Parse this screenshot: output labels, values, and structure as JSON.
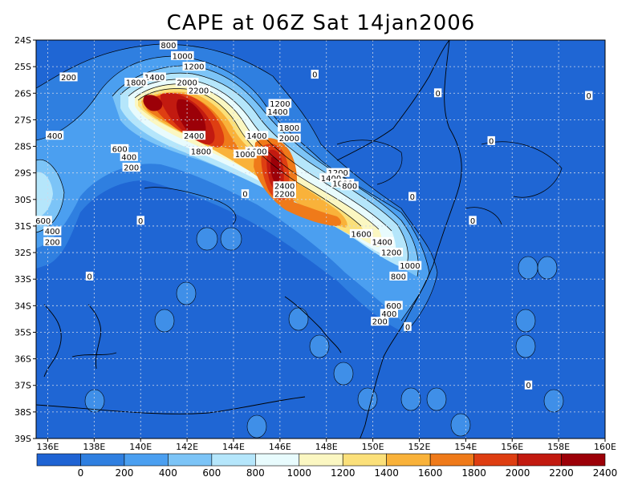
{
  "title": "CAPE at 06Z Sat 14jan2006",
  "colors": {
    "base": "#1f6fd6",
    "land_line": "#000000"
  },
  "chart_data": {
    "type": "heatmap",
    "title": "CAPE at 06Z Sat 14jan2006",
    "x_axis": {
      "range": [
        135.5,
        160
      ],
      "ticks": [
        "136E",
        "138E",
        "140E",
        "142E",
        "144E",
        "146E",
        "148E",
        "150E",
        "152E",
        "154E",
        "156E",
        "158E",
        "160E"
      ]
    },
    "y_axis": {
      "range": [
        -39,
        -24
      ],
      "ticks": [
        "24S",
        "25S",
        "26S",
        "27S",
        "28S",
        "29S",
        "30S",
        "31S",
        "32S",
        "33S",
        "34S",
        "35S",
        "36S",
        "37S",
        "38S",
        "39S"
      ]
    },
    "grid": true,
    "colorbar": {
      "levels": [
        "0",
        "200",
        "400",
        "600",
        "800",
        "1000",
        "1200",
        "1400",
        "1600",
        "1800",
        "2000",
        "2200",
        "2400"
      ],
      "colors": [
        "#1f63d3",
        "#2f7fe0",
        "#4b9ff0",
        "#7cc4f7",
        "#b5e6fb",
        "#e8fbfd",
        "#fbf7c2",
        "#fbe07a",
        "#f9b23a",
        "#ef7a1a",
        "#de3e12",
        "#c21a10",
        "#9c0008"
      ]
    },
    "contour_labels": [
      {
        "text": "800",
        "lon": 141.2,
        "lat": -24.2
      },
      {
        "text": "1000",
        "lon": 141.8,
        "lat": -24.6
      },
      {
        "text": "1200",
        "lon": 142.3,
        "lat": -25.0
      },
      {
        "text": "200",
        "lon": 136.9,
        "lat": -25.4
      },
      {
        "text": "1400",
        "lon": 140.6,
        "lat": -25.4
      },
      {
        "text": "1800",
        "lon": 139.8,
        "lat": -25.6
      },
      {
        "text": "2000",
        "lon": 142.0,
        "lat": -25.6
      },
      {
        "text": "2200",
        "lon": 142.5,
        "lat": -25.9
      },
      {
        "text": "0",
        "lon": 147.5,
        "lat": -25.3
      },
      {
        "text": "0",
        "lon": 152.8,
        "lat": -26.0
      },
      {
        "text": "0",
        "lon": 159.3,
        "lat": -26.1
      },
      {
        "text": "1200",
        "lon": 146.0,
        "lat": -26.4
      },
      {
        "text": "1400",
        "lon": 145.9,
        "lat": -26.7
      },
      {
        "text": "400",
        "lon": 136.3,
        "lat": -27.6
      },
      {
        "text": "1800",
        "lon": 146.4,
        "lat": -27.3
      },
      {
        "text": "2400",
        "lon": 142.3,
        "lat": -27.6
      },
      {
        "text": "1400",
        "lon": 145.0,
        "lat": -27.6
      },
      {
        "text": "2000",
        "lon": 146.4,
        "lat": -27.7
      },
      {
        "text": "0",
        "lon": 155.1,
        "lat": -27.8
      },
      {
        "text": "600",
        "lon": 139.1,
        "lat": -28.1
      },
      {
        "text": "1800",
        "lon": 142.6,
        "lat": -28.2
      },
      {
        "text": "1600",
        "lon": 145.0,
        "lat": -28.2
      },
      {
        "text": "1000",
        "lon": 144.5,
        "lat": -28.3
      },
      {
        "text": "400",
        "lon": 139.5,
        "lat": -28.4
      },
      {
        "text": "200",
        "lon": 139.6,
        "lat": -28.8
      },
      {
        "text": "1200",
        "lon": 148.5,
        "lat": -29.0
      },
      {
        "text": "1400",
        "lon": 148.2,
        "lat": -29.2
      },
      {
        "text": "1000",
        "lon": 148.7,
        "lat": -29.4
      },
      {
        "text": "800",
        "lon": 149.0,
        "lat": -29.5
      },
      {
        "text": "2400",
        "lon": 146.2,
        "lat": -29.5
      },
      {
        "text": "2200",
        "lon": 146.2,
        "lat": -29.8
      },
      {
        "text": "0",
        "lon": 144.5,
        "lat": -29.8
      },
      {
        "text": "0",
        "lon": 151.7,
        "lat": -29.9
      },
      {
        "text": "0",
        "lon": 140.0,
        "lat": -30.8
      },
      {
        "text": "0",
        "lon": 154.3,
        "lat": -30.8
      },
      {
        "text": "600",
        "lon": 135.8,
        "lat": -30.8
      },
      {
        "text": "400",
        "lon": 136.2,
        "lat": -31.2
      },
      {
        "text": "200",
        "lon": 136.2,
        "lat": -31.6
      },
      {
        "text": "1600",
        "lon": 149.5,
        "lat": -31.3
      },
      {
        "text": "1400",
        "lon": 150.4,
        "lat": -31.6
      },
      {
        "text": "1200",
        "lon": 150.8,
        "lat": -32.0
      },
      {
        "text": "1000",
        "lon": 151.6,
        "lat": -32.5
      },
      {
        "text": "800",
        "lon": 151.1,
        "lat": -32.9
      },
      {
        "text": "0",
        "lon": 137.8,
        "lat": -32.9
      },
      {
        "text": "600",
        "lon": 150.9,
        "lat": -34.0
      },
      {
        "text": "400",
        "lon": 150.7,
        "lat": -34.3
      },
      {
        "text": "200",
        "lon": 150.3,
        "lat": -34.6
      },
      {
        "text": "0",
        "lon": 151.5,
        "lat": -34.8
      },
      {
        "text": "0",
        "lon": 156.7,
        "lat": -37.0
      }
    ]
  }
}
